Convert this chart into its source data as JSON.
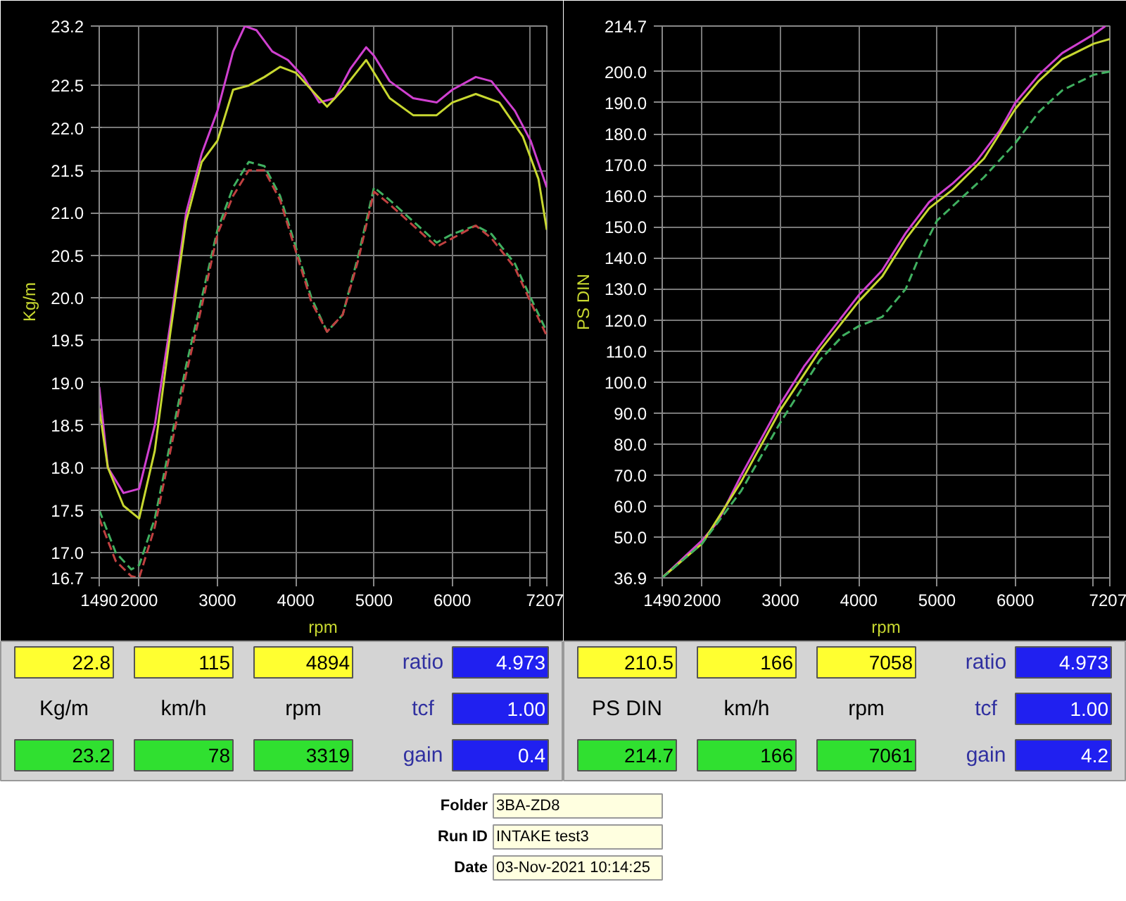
{
  "chart_data": [
    {
      "type": "line",
      "xlabel": "rpm",
      "ylabel": "Kg/m",
      "grid": true,
      "xlim": [
        1490,
        7207
      ],
      "ylim": [
        16.7,
        23.2
      ],
      "xticks": [
        1490,
        2000,
        3000,
        4000,
        5000,
        6000,
        {
          "value": 7000,
          "label": null
        },
        7207
      ],
      "yticks": [
        16.7,
        {
          "value": 17.0,
          "label": "17.0"
        },
        17.5,
        {
          "value": 18.0,
          "label": "18.0"
        },
        18.5,
        {
          "value": 19.0,
          "label": "19.0"
        },
        19.5,
        {
          "value": 20.0,
          "label": "20.0"
        },
        20.5,
        {
          "value": 21.0,
          "label": "21.0"
        },
        21.5,
        {
          "value": 22.0,
          "label": "22.0"
        },
        22.5,
        23.2
      ],
      "series": [
        {
          "color": "#d040d0",
          "line_style": "solid",
          "x": [
            1490,
            1600,
            1800,
            2000,
            2200,
            2400,
            2600,
            2800,
            3000,
            3200,
            3350,
            3500,
            3700,
            3900,
            4100,
            4300,
            4500,
            4700,
            4900,
            5000,
            5200,
            5500,
            5800,
            6000,
            6300,
            6500,
            6800,
            7000,
            7207
          ],
          "values": [
            18.95,
            18.0,
            17.7,
            17.75,
            18.5,
            19.7,
            21.0,
            21.7,
            22.2,
            22.9,
            23.2,
            23.15,
            22.9,
            22.8,
            22.6,
            22.3,
            22.35,
            22.7,
            22.95,
            22.85,
            22.55,
            22.35,
            22.3,
            22.45,
            22.6,
            22.55,
            22.2,
            21.85,
            21.3
          ]
        },
        {
          "color": "#c8d830",
          "line_style": "solid",
          "x": [
            1490,
            1600,
            1800,
            2000,
            2200,
            2400,
            2600,
            2800,
            3000,
            3200,
            3400,
            3600,
            3800,
            4000,
            4200,
            4400,
            4600,
            4900,
            5000,
            5200,
            5500,
            5800,
            6000,
            6300,
            6600,
            6900,
            7100,
            7207
          ],
          "values": [
            18.7,
            18.0,
            17.55,
            17.4,
            18.2,
            19.6,
            20.9,
            21.6,
            21.85,
            22.45,
            22.5,
            22.6,
            22.72,
            22.65,
            22.45,
            22.25,
            22.45,
            22.8,
            22.65,
            22.35,
            22.15,
            22.15,
            22.3,
            22.4,
            22.3,
            21.9,
            21.4,
            20.8
          ]
        },
        {
          "color": "#40b060",
          "line_style": "dashed",
          "x": [
            1490,
            1700,
            1900,
            2000,
            2200,
            2400,
            2600,
            2800,
            3000,
            3200,
            3400,
            3600,
            3800,
            4000,
            4200,
            4400,
            4600,
            4800,
            5000,
            5200,
            5500,
            5800,
            6000,
            6300,
            6500,
            6800,
            7000,
            7207
          ],
          "values": [
            17.5,
            17.0,
            16.8,
            16.85,
            17.4,
            18.3,
            19.2,
            20.0,
            20.8,
            21.3,
            21.6,
            21.55,
            21.2,
            20.6,
            20.0,
            19.6,
            19.8,
            20.5,
            21.3,
            21.15,
            20.9,
            20.65,
            20.75,
            20.85,
            20.75,
            20.4,
            20.0,
            19.6
          ]
        },
        {
          "color": "#c04040",
          "line_style": "dashed",
          "x": [
            1490,
            1700,
            1900,
            2000,
            2200,
            2400,
            2600,
            2800,
            3000,
            3200,
            3400,
            3600,
            3800,
            4000,
            4200,
            4400,
            4600,
            4800,
            5000,
            5200,
            5500,
            5800,
            6000,
            6300,
            6500,
            6800,
            7000,
            7207
          ],
          "values": [
            17.4,
            16.9,
            16.72,
            16.7,
            17.3,
            18.2,
            19.1,
            19.9,
            20.75,
            21.2,
            21.5,
            21.5,
            21.15,
            20.55,
            19.95,
            19.6,
            19.8,
            20.45,
            21.25,
            21.1,
            20.85,
            20.6,
            20.7,
            20.85,
            20.7,
            20.35,
            19.95,
            19.55
          ]
        }
      ]
    },
    {
      "type": "line",
      "xlabel": "rpm",
      "ylabel": "PS DIN",
      "grid": true,
      "xlim": [
        1490,
        7207
      ],
      "ylim": [
        36.9,
        214.7
      ],
      "xticks": [
        1490,
        2000,
        3000,
        4000,
        5000,
        6000,
        {
          "value": 7000,
          "label": null
        },
        7207
      ],
      "yticks": [
        36.9,
        {
          "value": 50,
          "label": "50.0"
        },
        {
          "value": 60,
          "label": "60.0"
        },
        {
          "value": 70,
          "label": "70.0"
        },
        {
          "value": 80,
          "label": "80.0"
        },
        {
          "value": 90,
          "label": "90.0"
        },
        {
          "value": 100,
          "label": "100.0"
        },
        {
          "value": 110,
          "label": "110.0"
        },
        {
          "value": 120,
          "label": "120.0"
        },
        {
          "value": 130,
          "label": "130.0"
        },
        {
          "value": 140,
          "label": "140.0"
        },
        {
          "value": 150,
          "label": "150.0"
        },
        {
          "value": 160,
          "label": "160.0"
        },
        {
          "value": 170,
          "label": "170.0"
        },
        {
          "value": 180,
          "label": "180.0"
        },
        {
          "value": 190,
          "label": "190.0"
        },
        {
          "value": 200,
          "label": "200.0"
        },
        214.7
      ],
      "series": [
        {
          "color": "#d040d0",
          "line_style": "solid",
          "x": [
            1490,
            2000,
            2200,
            2500,
            3000,
            3300,
            3600,
            4000,
            4300,
            4600,
            4900,
            5200,
            5500,
            5800,
            6000,
            6300,
            6600,
            7000,
            7150
          ],
          "values": [
            37,
            49,
            55,
            70,
            93,
            105,
            115,
            128,
            136,
            148,
            158,
            164,
            171,
            181,
            190,
            199,
            206,
            212,
            214.7
          ]
        },
        {
          "color": "#c8d830",
          "line_style": "solid",
          "x": [
            1490,
            2000,
            2500,
            3000,
            3500,
            4000,
            4300,
            4600,
            4900,
            5200,
            5600,
            6000,
            6300,
            6600,
            7000,
            7207
          ],
          "values": [
            37,
            48,
            68,
            91,
            110,
            126,
            134,
            146,
            156,
            162,
            172,
            188,
            197,
            204,
            209,
            210.5
          ]
        },
        {
          "color": "#40b060",
          "line_style": "dashed",
          "x": [
            1490,
            2000,
            2500,
            3000,
            3500,
            3800,
            4000,
            4300,
            4600,
            4800,
            5000,
            5300,
            5600,
            6000,
            6300,
            6600,
            7000,
            7207
          ],
          "values": [
            36.9,
            48,
            65,
            87,
            107,
            115,
            118,
            121,
            130,
            142,
            152,
            159,
            166,
            177,
            187,
            194,
            199,
            200
          ]
        }
      ]
    },
    {
      "type": "other",
      "annotations": [
        "22.8",
        "115",
        "4894",
        "ratio",
        "4.973",
        "Kg/m",
        "km/h",
        "rpm",
        "tcf",
        "1.00",
        "23.2",
        "78",
        "3319",
        "gain",
        "0.4"
      ]
    },
    {
      "type": "other",
      "annotations": [
        "210.5",
        "166",
        "7058",
        "ratio",
        "4.973",
        "PS DIN",
        "km/h",
        "rpm",
        "tcf",
        "1.00",
        "214.7",
        "166",
        "7061",
        "gain",
        "4.2"
      ]
    },
    {
      "type": "other",
      "annotations": [
        "Folder",
        "3BA-ZD8",
        "Run ID",
        "INTAKE test3",
        "Date",
        "03-Nov-2021  10:14:25"
      ]
    }
  ]
}
